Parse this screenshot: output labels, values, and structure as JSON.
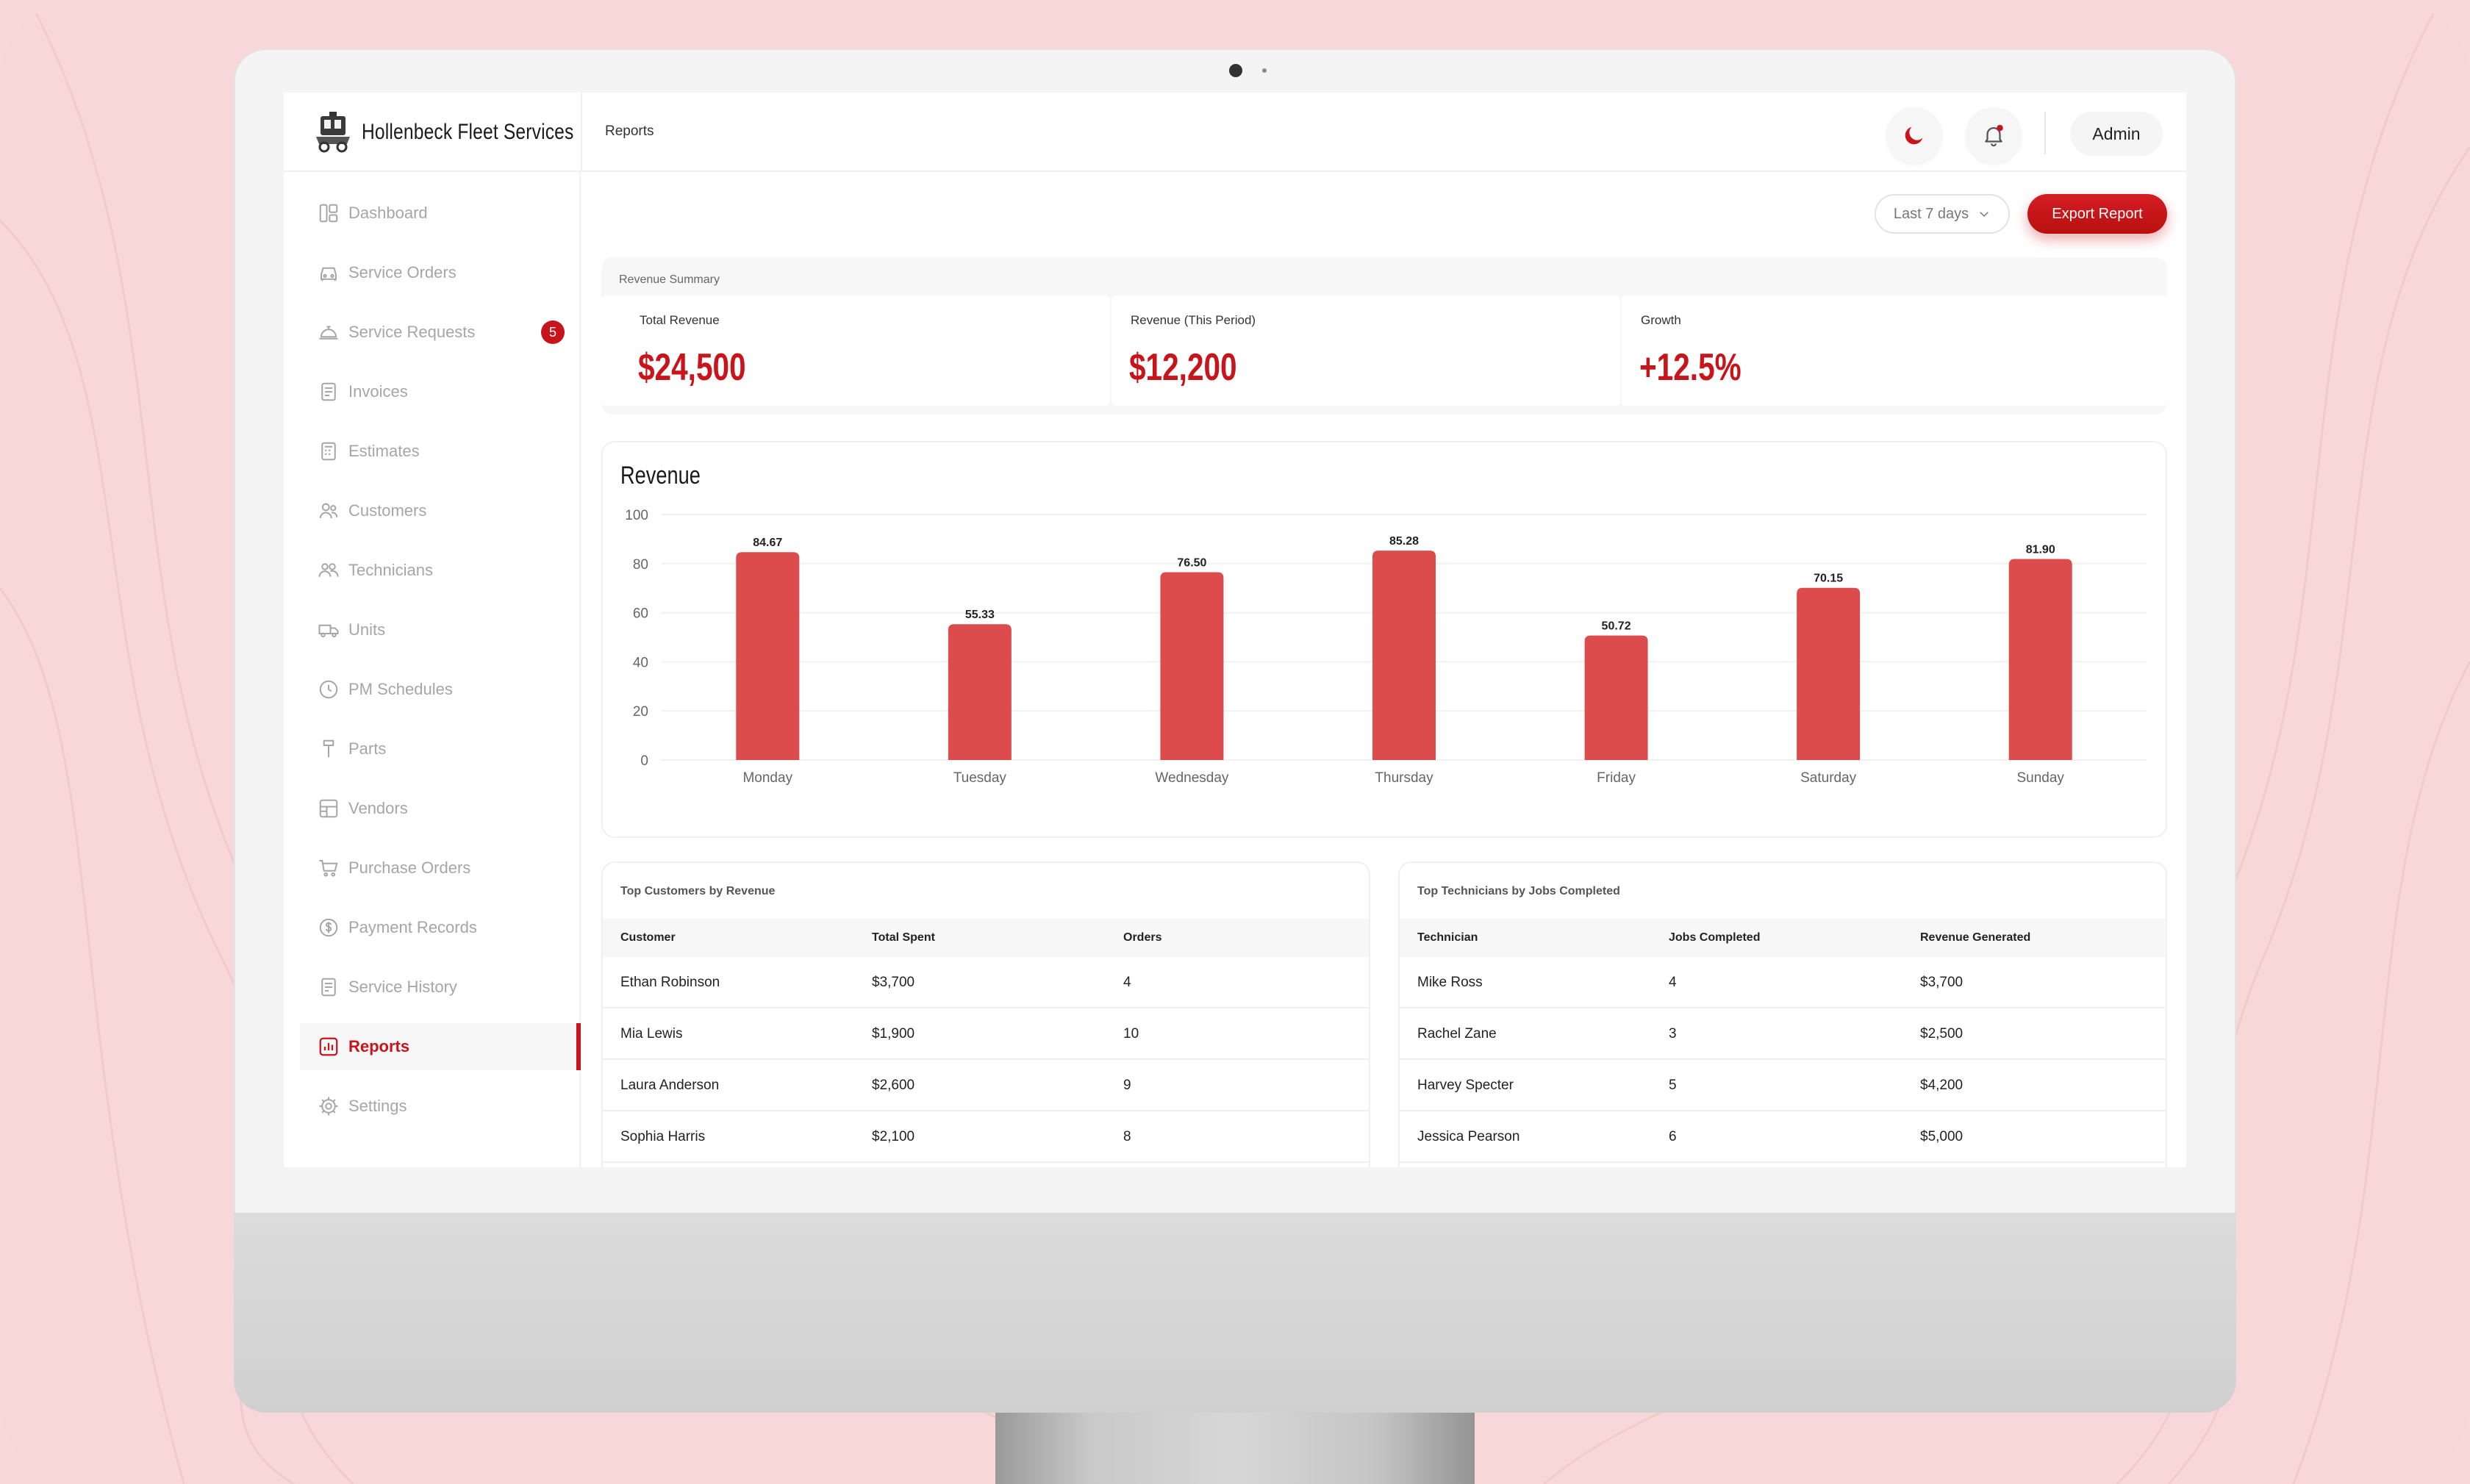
{
  "app": {
    "name": "Hollenbeck Fleet Services",
    "breadcrumb": "Reports",
    "user_label": "Admin",
    "accent_color": "#c8151b",
    "icons": {
      "theme": "moon-icon",
      "notifications": "bell-icon"
    }
  },
  "sidebar": {
    "items": [
      {
        "label": "Dashboard",
        "icon": "dashboard-icon"
      },
      {
        "label": "Service Orders",
        "icon": "car-icon"
      },
      {
        "label": "Service Requests",
        "icon": "bell-service-icon",
        "badge": "5"
      },
      {
        "label": "Invoices",
        "icon": "invoice-icon"
      },
      {
        "label": "Estimates",
        "icon": "estimate-icon"
      },
      {
        "label": "Customers",
        "icon": "customers-icon"
      },
      {
        "label": "Technicians",
        "icon": "technicians-icon"
      },
      {
        "label": "Units",
        "icon": "truck-icon"
      },
      {
        "label": "PM Schedules",
        "icon": "clock-icon"
      },
      {
        "label": "Parts",
        "icon": "wrench-icon"
      },
      {
        "label": "Vendors",
        "icon": "store-icon"
      },
      {
        "label": "Purchase Orders",
        "icon": "cart-icon"
      },
      {
        "label": "Payment Records",
        "icon": "payment-icon"
      },
      {
        "label": "Service History",
        "icon": "history-icon"
      },
      {
        "label": "Reports",
        "icon": "reports-icon",
        "active": true
      },
      {
        "label": "Settings",
        "icon": "gear-icon"
      }
    ]
  },
  "toolbar": {
    "range_label": "Last 7 days",
    "export_label": "Export Report"
  },
  "summary": {
    "caption": "Revenue Summary",
    "cards": [
      {
        "label": "Total Revenue",
        "value": "$24,500"
      },
      {
        "label": "Revenue (This Period)",
        "value": "$12,200"
      },
      {
        "label": "Growth",
        "value": "+12.5%"
      }
    ]
  },
  "chart_data": {
    "type": "bar",
    "title": "Revenue",
    "xlabel": "",
    "ylabel": "",
    "categories": [
      "Monday",
      "Tuesday",
      "Wednesday",
      "Thursday",
      "Friday",
      "Saturday",
      "Sunday"
    ],
    "values": [
      84.67,
      55.33,
      76.5,
      85.28,
      50.72,
      70.15,
      81.9
    ],
    "value_labels": [
      "84.67",
      "55.33",
      "76.50",
      "85.28",
      "50.72",
      "70.15",
      "81.90"
    ],
    "yticks": [
      0,
      20,
      40,
      60,
      80,
      100
    ],
    "ylim": [
      0,
      100
    ],
    "grid": true,
    "bar_color": "#dc4c4c"
  },
  "top_customers": {
    "title": "Top Customers by Revenue",
    "columns": [
      "Customer",
      "Total Spent",
      "Orders"
    ],
    "rows": [
      [
        "Ethan Robinson",
        "$3,700",
        "4"
      ],
      [
        "Mia Lewis",
        "$1,900",
        "10"
      ],
      [
        "Laura Anderson",
        "$2,600",
        "9"
      ],
      [
        "Sophia Harris",
        "$2,100",
        "8"
      ]
    ]
  },
  "top_technicians": {
    "title": "Top Technicians by Jobs Completed",
    "columns": [
      "Technician",
      "Jobs Completed",
      "Revenue Generated"
    ],
    "rows": [
      [
        "Mike Ross",
        "4",
        "$3,700"
      ],
      [
        "Rachel Zane",
        "3",
        "$2,500"
      ],
      [
        "Harvey Specter",
        "5",
        "$4,200"
      ],
      [
        "Jessica Pearson",
        "6",
        "$5,000"
      ]
    ]
  }
}
